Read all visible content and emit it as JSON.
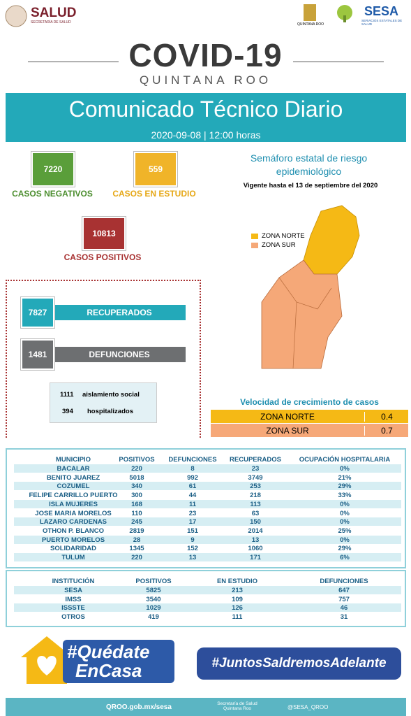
{
  "header": {
    "salud": "SALUD",
    "salud_sub": "SECRETARÍA DE SALUD",
    "qroo": "QUINTANA ROO",
    "sesa": "SESA",
    "sesa_sub": "SERVICIOS ESTATALES DE SALUD"
  },
  "title": {
    "main": "COVID-19",
    "sub": "QUINTANA ROO"
  },
  "banner": {
    "title": "Comunicado Técnico Diario",
    "date": "2020-09-08 | 12:00 horas"
  },
  "stats": {
    "negativos": {
      "value": 7220,
      "label": "CASOS NEGATIVOS"
    },
    "estudio": {
      "value": 559,
      "label": "CASOS EN ESTUDIO"
    },
    "positivos": {
      "value": 10813,
      "label": "CASOS POSITIVOS"
    },
    "recuperados": {
      "value": 7827,
      "label": "RECUPERADOS"
    },
    "defunciones": {
      "value": 1481,
      "label": "DEFUNCIONES"
    },
    "aislamiento": {
      "value": 1111,
      "label": "aislamiento social"
    },
    "hospitalizados": {
      "value": 394,
      "label": "hospitalizados"
    }
  },
  "semaforo": {
    "title": "Semáforo estatal de riesgo epidemiológico",
    "vigente": "Vigente hasta el 13 de septiembre del 2020",
    "legend": [
      "ZONA NORTE",
      "ZONA SUR"
    ]
  },
  "velocidad": {
    "title": "Velocidad de crecimiento de casos",
    "rows": [
      [
        "ZONA NORTE",
        0.4
      ],
      [
        "ZONA SUR",
        0.7
      ]
    ]
  },
  "municipios": {
    "headers": [
      "MUNICIPIO",
      "POSITIVOS",
      "DEFUNCIONES",
      "RECUPERADOS",
      "OCUPACIÓN HOSPITALARIA"
    ],
    "rows": [
      [
        "BACALAR",
        220,
        8,
        23,
        "0%"
      ],
      [
        "BENITO JUAREZ",
        5018,
        992,
        3749,
        "21%"
      ],
      [
        "COZUMEL",
        340,
        61,
        253,
        "29%"
      ],
      [
        "FELIPE CARRILLO PUERTO",
        300,
        44,
        218,
        "33%"
      ],
      [
        "ISLA MUJERES",
        168,
        11,
        113,
        "0%"
      ],
      [
        "JOSE MARIA MORELOS",
        110,
        23,
        63,
        "0%"
      ],
      [
        "LAZARO CARDENAS",
        245,
        17,
        150,
        "0%"
      ],
      [
        "OTHON P. BLANCO",
        2819,
        151,
        2014,
        "25%"
      ],
      [
        "PUERTO MORELOS",
        28,
        9,
        13,
        "0%"
      ],
      [
        "SOLIDARIDAD",
        1345,
        152,
        1060,
        "29%"
      ],
      [
        "TULUM",
        220,
        13,
        171,
        "6%"
      ]
    ]
  },
  "instituciones": {
    "headers": [
      "INSTITUCIÓN",
      "POSITIVOS",
      "EN ESTUDIO",
      "DEFUNCIONES"
    ],
    "rows": [
      [
        "SESA",
        5825,
        213,
        647
      ],
      [
        "IMSS",
        3540,
        109,
        757
      ],
      [
        "ISSSTE",
        1029,
        126,
        46
      ],
      [
        "OTROS",
        419,
        111,
        31
      ]
    ]
  },
  "footer": {
    "quedate": [
      "#Quédate",
      "EnCasa"
    ],
    "juntos": "#JuntosSaldremosAdelante",
    "web": "QROO.gob.mx/sesa",
    "fb": "Secretaría de Salud Quintana Roo",
    "tw": "@SESA_QROO"
  }
}
